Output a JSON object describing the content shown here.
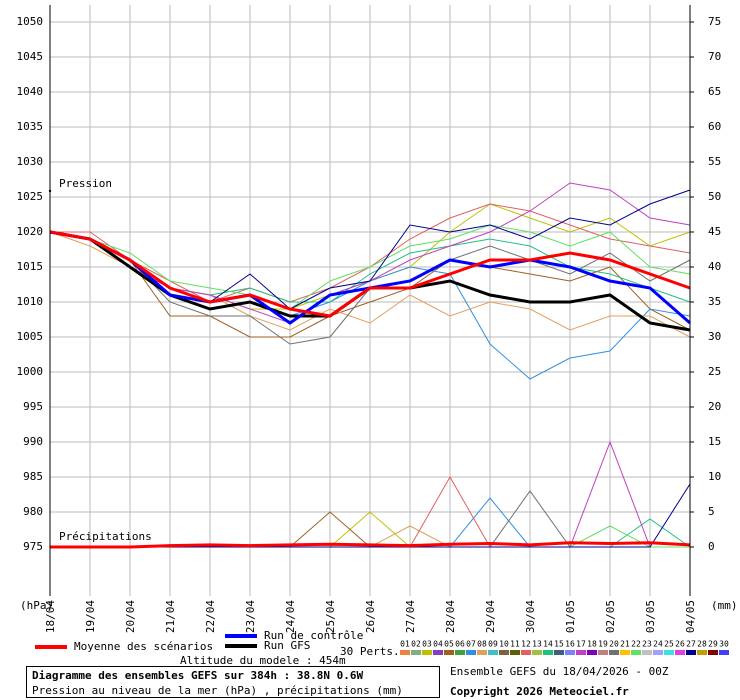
{
  "chart_data": {
    "type": "line",
    "pressure_label": "Pression",
    "precip_label": "Précipitations",
    "y_unit": "(hPa)",
    "y2_unit": "(mm)",
    "x": [
      0,
      24,
      48,
      72,
      96,
      120,
      144,
      168,
      192,
      216,
      240,
      264,
      288,
      312,
      336,
      360,
      384
    ],
    "xlim": [
      0,
      384
    ],
    "xticks": [
      {
        "value": 0,
        "label": "18/04"
      },
      {
        "value": 24,
        "label": "19/04"
      },
      {
        "value": 48,
        "label": "20/04"
      },
      {
        "value": 72,
        "label": "21/04"
      },
      {
        "value": 96,
        "label": "22/04"
      },
      {
        "value": 120,
        "label": "23/04"
      },
      {
        "value": 144,
        "label": "24/04"
      },
      {
        "value": 168,
        "label": "25/04"
      },
      {
        "value": 192,
        "label": "26/04"
      },
      {
        "value": 216,
        "label": "27/04"
      },
      {
        "value": 240,
        "label": "28/04"
      },
      {
        "value": 264,
        "label": "29/04"
      },
      {
        "value": 288,
        "label": "30/04"
      },
      {
        "value": 312,
        "label": "01/05"
      },
      {
        "value": 336,
        "label": "02/05"
      },
      {
        "value": 360,
        "label": "03/05"
      },
      {
        "value": 384,
        "label": "04/05"
      }
    ],
    "ylim": [
      968,
      1050
    ],
    "yticks": [
      975,
      980,
      985,
      990,
      995,
      1000,
      1005,
      1010,
      1015,
      1020,
      1025,
      1030,
      1035,
      1040,
      1045,
      1050
    ],
    "y2lim": [
      -7,
      75
    ],
    "y2ticks": [
      0,
      5,
      10,
      15,
      20,
      25,
      30,
      35,
      40,
      45,
      50,
      55,
      60,
      65,
      70,
      75
    ],
    "grid": true,
    "series": [
      {
        "name": "Moyenne des scénarios",
        "color": "#ff0000",
        "values": [
          1020,
          1019,
          1016,
          1012,
          1010,
          1011,
          1009,
          1008,
          1012,
          1012,
          1014,
          1016,
          1016,
          1017,
          1016,
          1014,
          1012
        ],
        "precip": [
          0,
          0,
          0,
          0.2,
          0.3,
          0.2,
          0.3,
          0.4,
          0.3,
          0.2,
          0.4,
          0.5,
          0.3,
          0.6,
          0.5,
          0.6,
          0.3
        ]
      },
      {
        "name": "Run de contrôle",
        "color": "#0000ff",
        "values": [
          1020,
          1019,
          1016,
          1011,
          1010,
          1011,
          1007,
          1011,
          1012,
          1013,
          1016,
          1015,
          1016,
          1015,
          1013,
          1012,
          1007
        ]
      },
      {
        "name": "Run GFS",
        "color": "#000000",
        "values": [
          1020,
          1019,
          1015,
          1011,
          1009,
          1010,
          1008,
          1008,
          1012,
          1012,
          1013,
          1011,
          1010,
          1010,
          1011,
          1007,
          1006
        ]
      }
    ],
    "members_label": "30 Perts.",
    "members": [
      {
        "name": "01",
        "color": "#f08040"
      },
      {
        "name": "02",
        "color": "#80b080"
      },
      {
        "name": "03",
        "color": "#c0c000",
        "pressure": [
          1020,
          1019,
          1016,
          1012,
          1011,
          1009,
          1009,
          1011,
          1013,
          1015,
          1020,
          1024,
          1022,
          1020,
          1022,
          1018,
          1020
        ],
        "precip": [
          0,
          0,
          0,
          0,
          0,
          0,
          0,
          0,
          5,
          0,
          0,
          0,
          0,
          0,
          0,
          0,
          0
        ]
      },
      {
        "name": "04",
        "color": "#8040c0"
      },
      {
        "name": "05",
        "color": "#a06020",
        "pressure": [
          1020,
          1019,
          1016,
          1008,
          1008,
          1005,
          1005,
          1008,
          1010,
          1012,
          1016,
          1015,
          1014,
          1013,
          1015,
          1009,
          1006
        ],
        "precip": [
          0,
          0,
          0,
          0,
          0,
          0,
          0,
          5,
          0,
          0,
          0,
          0,
          0,
          0,
          0,
          0,
          0
        ]
      },
      {
        "name": "06",
        "color": "#40a040"
      },
      {
        "name": "07",
        "color": "#3090e0",
        "pressure": [
          1020,
          1019,
          1015,
          1011,
          1009,
          1010,
          1008,
          1010,
          1013,
          1015,
          1014,
          1004,
          999,
          1002,
          1003,
          1009,
          1008
        ],
        "precip": [
          0,
          0,
          0,
          0,
          0,
          0,
          0,
          0,
          0,
          0,
          0,
          7,
          0,
          0,
          0,
          0,
          0
        ]
      },
      {
        "name": "08",
        "color": "#e0a060",
        "pressure": [
          1020,
          1018,
          1015,
          1012,
          1011,
          1008,
          1006,
          1009,
          1007,
          1011,
          1008,
          1010,
          1009,
          1006,
          1008,
          1008,
          1005
        ],
        "precip": [
          0,
          0,
          0,
          0,
          0,
          0,
          0,
          0,
          0,
          3,
          0,
          0,
          0,
          0,
          0,
          0,
          0
        ]
      },
      {
        "name": "09",
        "color": "#40c0c0"
      },
      {
        "name": "10",
        "color": "#806040"
      },
      {
        "name": "11",
        "color": "#606000"
      },
      {
        "name": "12",
        "color": "#e06060",
        "pressure": [
          1020,
          1020,
          1016,
          1013,
          1010,
          1012,
          1010,
          1012,
          1015,
          1019,
          1022,
          1024,
          1023,
          1021,
          1019,
          1018,
          1017
        ],
        "precip": [
          0,
          0,
          0,
          0,
          0,
          0,
          0,
          0,
          0,
          0,
          10,
          0,
          0,
          0,
          0,
          0,
          0
        ]
      },
      {
        "name": "13",
        "color": "#a0c040"
      },
      {
        "name": "14",
        "color": "#20c080",
        "pressure": [
          1020,
          1019,
          1016,
          1012,
          1011,
          1012,
          1010,
          1010,
          1014,
          1017,
          1018,
          1019,
          1018,
          1015,
          1014,
          1012,
          1010
        ],
        "precip": [
          0,
          0,
          0,
          0,
          0,
          0,
          0,
          0,
          0,
          0,
          0,
          0,
          0,
          0,
          0,
          4,
          0
        ]
      },
      {
        "name": "15",
        "color": "#406080"
      },
      {
        "name": "16",
        "color": "#8080ff"
      },
      {
        "name": "17",
        "color": "#c040c0",
        "pressure": [
          1020,
          1019,
          1015,
          1012,
          1011,
          1009,
          1007,
          1011,
          1013,
          1016,
          1018,
          1020,
          1023,
          1027,
          1026,
          1022,
          1021
        ],
        "precip": [
          0,
          0,
          0,
          0,
          0,
          0,
          0,
          0,
          0,
          0,
          0,
          0,
          0,
          0,
          15,
          0,
          0
        ]
      },
      {
        "name": "18",
        "color": "#8000c0"
      },
      {
        "name": "19",
        "color": "#c08080"
      },
      {
        "name": "20",
        "color": "#707070",
        "pressure": [
          1020,
          1019,
          1016,
          1010,
          1008,
          1008,
          1004,
          1005,
          1012,
          1013,
          1016,
          1018,
          1016,
          1014,
          1017,
          1013,
          1016
        ],
        "precip": [
          0,
          0,
          0,
          0,
          0,
          0,
          0,
          0,
          0,
          0,
          0,
          0,
          8,
          0,
          0,
          0,
          0
        ]
      },
      {
        "name": "21",
        "color": "#ffc000"
      },
      {
        "name": "22",
        "color": "#60e060",
        "pressure": [
          1020,
          1019,
          1017,
          1013,
          1012,
          1011,
          1009,
          1013,
          1015,
          1018,
          1019,
          1021,
          1020,
          1018,
          1020,
          1015,
          1014
        ],
        "precip": [
          0,
          0,
          0,
          0,
          0,
          0,
          0,
          0,
          0,
          0,
          0,
          0,
          0,
          0,
          3,
          0,
          0
        ]
      },
      {
        "name": "23",
        "color": "#c0c0c0"
      },
      {
        "name": "24",
        "color": "#a0a0ff"
      },
      {
        "name": "25",
        "color": "#40e0e0"
      },
      {
        "name": "26",
        "color": "#e040e0"
      },
      {
        "name": "27",
        "color": "#000090",
        "pressure": [
          1020,
          1019,
          1016,
          1011,
          1010,
          1014,
          1009,
          1012,
          1013,
          1021,
          1020,
          1021,
          1019,
          1022,
          1021,
          1024,
          1026
        ],
        "precip": [
          0,
          0,
          0,
          0,
          0,
          0,
          0,
          0,
          0,
          0,
          0,
          0,
          0,
          0,
          0,
          0,
          9
        ]
      },
      {
        "name": "28",
        "color": "#c0a000"
      },
      {
        "name": "29",
        "color": "#800000"
      },
      {
        "name": "30",
        "color": "#4040ff"
      }
    ],
    "altitude": "Altitude du modele : 454m",
    "title": "Diagramme des ensembles GEFS sur 384h : 38.8N 0.6W",
    "subtitle": "Pression au niveau de la mer (hPa) , précipitations (mm)",
    "run_info": "Ensemble GEFS du 18/04/2026 - 00Z",
    "copyright": "Copyright 2026 Meteociel.fr"
  }
}
